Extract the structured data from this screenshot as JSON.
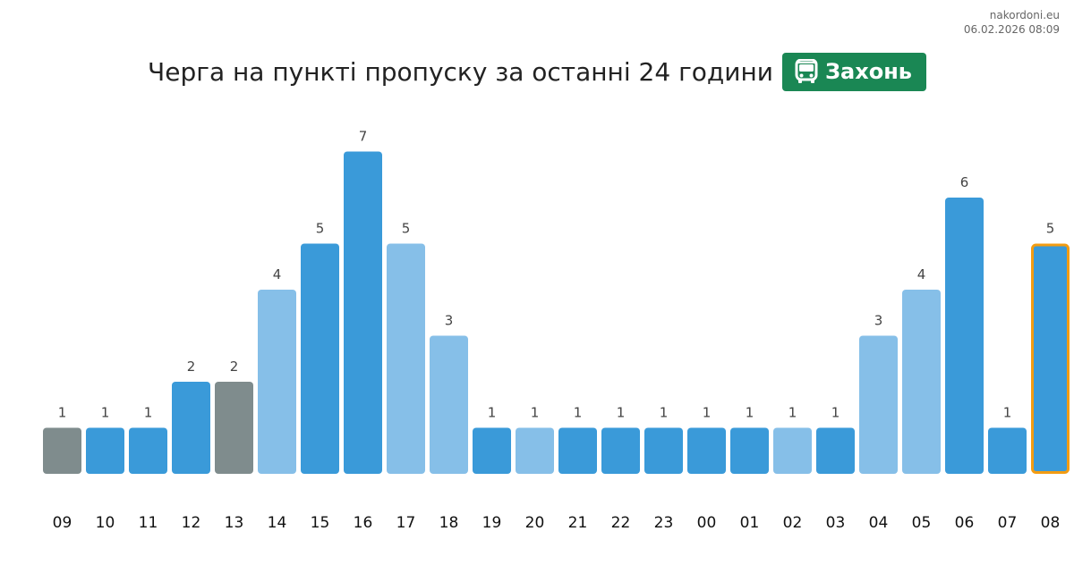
{
  "watermark": {
    "site": "nakordoni.eu",
    "timestamp": "06.02.2026 08:09"
  },
  "header": {
    "title": "Черга на пункті пропуску за останні 24 години",
    "badge_icon": "bus-icon",
    "badge_label": "Захонь",
    "badge_color": "#1a8754"
  },
  "chart_data": {
    "type": "bar",
    "title": "Черга на пункті пропуску за останні 24 години",
    "xlabel": "",
    "ylabel": "",
    "ylim": [
      0,
      7
    ],
    "grid": false,
    "legend": "none",
    "categories": [
      "09",
      "10",
      "11",
      "12",
      "13",
      "14",
      "15",
      "16",
      "17",
      "18",
      "19",
      "20",
      "21",
      "22",
      "23",
      "00",
      "01",
      "02",
      "03",
      "04",
      "05",
      "06",
      "07",
      "08"
    ],
    "values": [
      1,
      1,
      1,
      2,
      2,
      4,
      5,
      7,
      5,
      3,
      1,
      1,
      1,
      1,
      1,
      1,
      1,
      1,
      1,
      3,
      4,
      6,
      1,
      5
    ],
    "bar_styles": [
      "gray",
      "blue",
      "blue",
      "blue",
      "gray",
      "light",
      "blue",
      "blue",
      "light",
      "light",
      "blue",
      "light",
      "blue",
      "blue",
      "blue",
      "blue",
      "blue",
      "light",
      "blue",
      "light",
      "light",
      "blue",
      "blue",
      "current"
    ],
    "colors": {
      "blue": "#3a9ad9",
      "light": "#86bfe8",
      "gray": "#7f8c8d",
      "current_fill": "#3a9ad9",
      "current_outline": "#f39c12"
    }
  }
}
